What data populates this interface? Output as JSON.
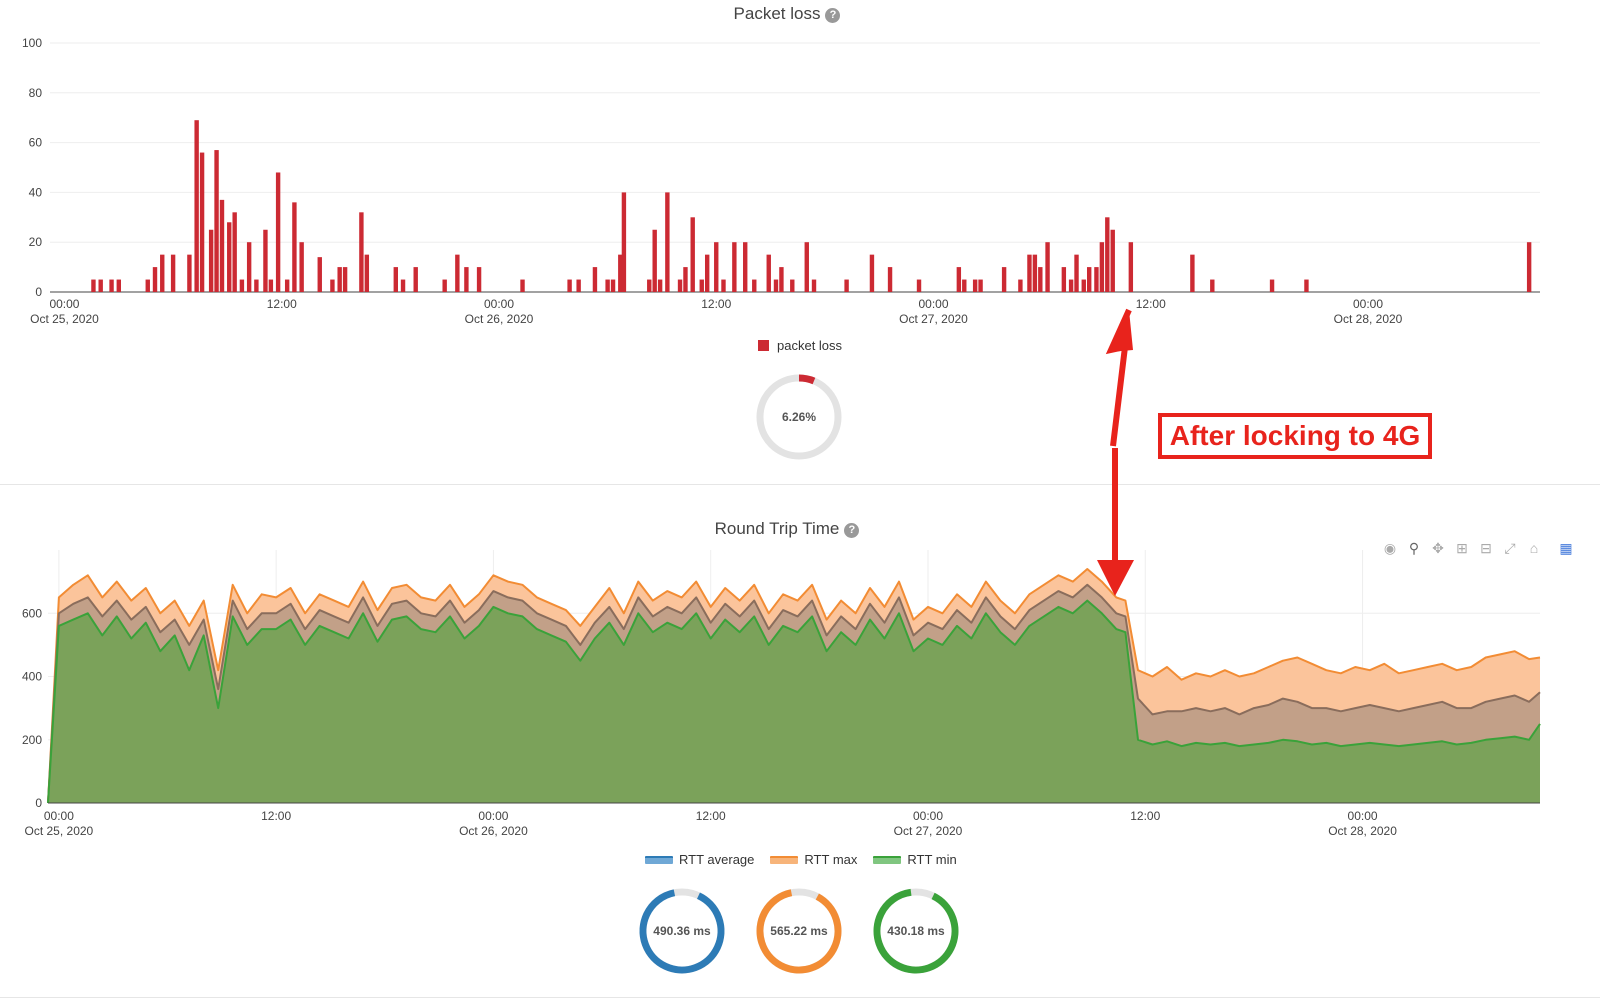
{
  "colors": {
    "loss": "#cc2a33",
    "avg": "#2d7bb6",
    "max": "#f28c34",
    "min": "#3aa23a",
    "grid": "#eeeeee",
    "annotation": "#e8231c"
  },
  "packet_loss": {
    "title": "Packet loss",
    "legend": "packet loss",
    "gauge": {
      "value": 6.26,
      "label": "6.26%"
    }
  },
  "rtt": {
    "title": "Round Trip Time",
    "legend": [
      "RTT average",
      "RTT max",
      "RTT min"
    ],
    "gauges": [
      {
        "label": "490.36 ms",
        "color": "avg"
      },
      {
        "label": "565.22 ms",
        "color": "max"
      },
      {
        "label": "430.18 ms",
        "color": "min"
      }
    ]
  },
  "toolbar_icons": [
    "camera-icon",
    "zoom-icon",
    "pan-icon",
    "zoom-in-icon",
    "zoom-out-icon",
    "autoscale-icon",
    "reset-icon",
    "plotly-logo-icon"
  ],
  "annotation": {
    "text": "After locking to 4G"
  },
  "chart_data": [
    {
      "type": "bar",
      "title": "Packet loss",
      "series": [
        {
          "name": "packet loss"
        }
      ],
      "ylim": [
        0,
        100
      ],
      "yticks": [
        0,
        20,
        40,
        60,
        80,
        100
      ],
      "xticks": [
        {
          "h": 0,
          "label": "00:00",
          "sub": "Oct 25, 2020"
        },
        {
          "h": 12,
          "label": "12:00",
          "sub": ""
        },
        {
          "h": 24,
          "label": "00:00",
          "sub": "Oct 26, 2020"
        },
        {
          "h": 36,
          "label": "12:00",
          "sub": ""
        },
        {
          "h": 48,
          "label": "00:00",
          "sub": "Oct 27, 2020"
        },
        {
          "h": 60,
          "label": "12:00",
          "sub": ""
        },
        {
          "h": 72,
          "label": "00:00",
          "sub": "Oct 28, 2020"
        }
      ],
      "xlim_hours": [
        -0.8,
        81.5
      ],
      "bars": [
        [
          1.6,
          5
        ],
        [
          2.0,
          5
        ],
        [
          2.6,
          5
        ],
        [
          3.0,
          5
        ],
        [
          4.6,
          5
        ],
        [
          5.0,
          10
        ],
        [
          5.4,
          15
        ],
        [
          6.0,
          15
        ],
        [
          6.9,
          15
        ],
        [
          7.3,
          69
        ],
        [
          7.6,
          56
        ],
        [
          8.1,
          25
        ],
        [
          8.4,
          57
        ],
        [
          8.7,
          37
        ],
        [
          9.1,
          28
        ],
        [
          9.4,
          32
        ],
        [
          9.8,
          5
        ],
        [
          10.2,
          20
        ],
        [
          10.6,
          5
        ],
        [
          11.1,
          25
        ],
        [
          11.4,
          5
        ],
        [
          11.8,
          48
        ],
        [
          12.3,
          5
        ],
        [
          12.7,
          36
        ],
        [
          13.1,
          20
        ],
        [
          14.1,
          14
        ],
        [
          14.8,
          5
        ],
        [
          15.2,
          10
        ],
        [
          15.5,
          10
        ],
        [
          16.4,
          32
        ],
        [
          16.7,
          15
        ],
        [
          18.3,
          10
        ],
        [
          18.7,
          5
        ],
        [
          19.4,
          10
        ],
        [
          21.0,
          5
        ],
        [
          21.7,
          15
        ],
        [
          22.2,
          10
        ],
        [
          22.9,
          10
        ],
        [
          25.3,
          5
        ],
        [
          27.9,
          5
        ],
        [
          28.4,
          5
        ],
        [
          29.3,
          10
        ],
        [
          30.0,
          5
        ],
        [
          30.3,
          5
        ],
        [
          30.7,
          15
        ],
        [
          30.9,
          40
        ],
        [
          32.3,
          5
        ],
        [
          32.6,
          25
        ],
        [
          32.9,
          5
        ],
        [
          33.3,
          40
        ],
        [
          34.0,
          5
        ],
        [
          34.3,
          10
        ],
        [
          34.7,
          30
        ],
        [
          35.2,
          5
        ],
        [
          35.5,
          15
        ],
        [
          36.0,
          20
        ],
        [
          36.4,
          5
        ],
        [
          37.0,
          20
        ],
        [
          37.6,
          20
        ],
        [
          38.1,
          5
        ],
        [
          38.9,
          15
        ],
        [
          39.3,
          5
        ],
        [
          39.6,
          10
        ],
        [
          40.2,
          5
        ],
        [
          41.0,
          20
        ],
        [
          41.4,
          5
        ],
        [
          43.2,
          5
        ],
        [
          44.6,
          15
        ],
        [
          45.6,
          10
        ],
        [
          47.2,
          5
        ],
        [
          49.4,
          10
        ],
        [
          49.7,
          5
        ],
        [
          50.3,
          5
        ],
        [
          50.6,
          5
        ],
        [
          51.9,
          10
        ],
        [
          52.8,
          5
        ],
        [
          53.3,
          15
        ],
        [
          53.6,
          15
        ],
        [
          53.9,
          10
        ],
        [
          54.3,
          20
        ],
        [
          55.2,
          10
        ],
        [
          55.6,
          5
        ],
        [
          55.9,
          15
        ],
        [
          56.3,
          5
        ],
        [
          56.6,
          10
        ],
        [
          57.0,
          10
        ],
        [
          57.3,
          20
        ],
        [
          57.6,
          30
        ],
        [
          57.9,
          25
        ],
        [
          58.9,
          20
        ],
        [
          62.3,
          15
        ],
        [
          63.4,
          5
        ],
        [
          66.7,
          5
        ],
        [
          68.6,
          5
        ],
        [
          80.9,
          20
        ]
      ]
    },
    {
      "type": "area",
      "title": "Round Trip Time",
      "series": [
        {
          "name": "RTT average"
        },
        {
          "name": "RTT max"
        },
        {
          "name": "RTT min"
        }
      ],
      "ylim": [
        0,
        800
      ],
      "yticks": [
        0,
        200,
        400,
        600
      ],
      "xticks": [
        {
          "h": 0,
          "label": "00:00",
          "sub": "Oct 25, 2020"
        },
        {
          "h": 12,
          "label": "12:00",
          "sub": ""
        },
        {
          "h": 24,
          "label": "00:00",
          "sub": "Oct 26, 2020"
        },
        {
          "h": 36,
          "label": "12:00",
          "sub": ""
        },
        {
          "h": 48,
          "label": "00:00",
          "sub": "Oct 27, 2020"
        },
        {
          "h": 60,
          "label": "12:00",
          "sub": ""
        },
        {
          "h": 72,
          "label": "00:00",
          "sub": "Oct 28, 2020"
        }
      ],
      "xlim_hours": [
        -0.6,
        81.8
      ],
      "x_hours": [
        -0.6,
        0.0,
        0.8,
        1.6,
        2.4,
        3.2,
        4.0,
        4.8,
        5.6,
        6.4,
        7.2,
        8.0,
        8.8,
        9.6,
        10.4,
        11.2,
        12.0,
        12.8,
        13.6,
        14.4,
        15.2,
        16.0,
        16.8,
        17.6,
        18.4,
        19.2,
        20.0,
        20.8,
        21.6,
        22.4,
        23.2,
        24.0,
        24.8,
        25.6,
        26.4,
        27.2,
        28.0,
        28.8,
        29.6,
        30.4,
        31.2,
        32.0,
        32.8,
        33.6,
        34.4,
        35.2,
        36.0,
        36.8,
        37.6,
        38.4,
        39.2,
        40.0,
        40.8,
        41.6,
        42.4,
        43.2,
        44.0,
        44.8,
        45.6,
        46.4,
        47.2,
        48.0,
        48.8,
        49.6,
        50.4,
        51.2,
        52.0,
        52.8,
        53.6,
        54.4,
        55.2,
        56.0,
        56.8,
        57.6,
        58.4,
        58.9,
        59.6,
        60.4,
        61.2,
        62.0,
        62.8,
        63.6,
        64.4,
        65.2,
        66.0,
        66.8,
        67.6,
        68.4,
        69.2,
        70.0,
        70.8,
        71.6,
        72.4,
        73.2,
        74.0,
        74.8,
        75.6,
        76.4,
        77.2,
        78.0,
        78.8,
        79.6,
        80.4,
        81.2,
        81.8
      ],
      "max": [
        0,
        650,
        690,
        720,
        650,
        700,
        640,
        680,
        600,
        640,
        560,
        640,
        420,
        690,
        600,
        660,
        650,
        680,
        600,
        660,
        640,
        620,
        700,
        610,
        680,
        690,
        650,
        640,
        690,
        620,
        660,
        720,
        700,
        690,
        650,
        630,
        610,
        560,
        620,
        680,
        600,
        700,
        640,
        670,
        650,
        700,
        620,
        680,
        640,
        690,
        600,
        660,
        640,
        690,
        580,
        640,
        600,
        680,
        620,
        700,
        580,
        620,
        600,
        660,
        620,
        700,
        640,
        600,
        660,
        690,
        720,
        700,
        740,
        700,
        650,
        640,
        420,
        400,
        430,
        390,
        410,
        400,
        420,
        400,
        410,
        430,
        450,
        460,
        440,
        420,
        410,
        430,
        420,
        440,
        410,
        420,
        430,
        440,
        420,
        430,
        460,
        470,
        480,
        455,
        460
      ],
      "avg": [
        0,
        600,
        630,
        650,
        590,
        640,
        580,
        620,
        540,
        580,
        500,
        580,
        360,
        640,
        550,
        600,
        600,
        630,
        550,
        610,
        590,
        570,
        650,
        560,
        630,
        640,
        600,
        590,
        640,
        570,
        610,
        670,
        650,
        640,
        600,
        580,
        560,
        500,
        570,
        620,
        550,
        650,
        590,
        620,
        600,
        650,
        570,
        630,
        590,
        640,
        550,
        610,
        590,
        640,
        530,
        590,
        550,
        630,
        570,
        650,
        530,
        570,
        550,
        610,
        570,
        650,
        590,
        550,
        610,
        640,
        670,
        650,
        690,
        650,
        600,
        590,
        330,
        280,
        290,
        290,
        300,
        290,
        300,
        280,
        300,
        310,
        330,
        320,
        300,
        300,
        290,
        300,
        310,
        300,
        290,
        300,
        310,
        320,
        300,
        300,
        320,
        330,
        340,
        320,
        350
      ],
      "min": [
        0,
        560,
        580,
        600,
        530,
        590,
        520,
        570,
        480,
        530,
        420,
        530,
        300,
        590,
        500,
        550,
        550,
        580,
        500,
        560,
        540,
        520,
        600,
        510,
        580,
        590,
        550,
        540,
        590,
        520,
        560,
        620,
        600,
        590,
        550,
        530,
        510,
        450,
        520,
        570,
        500,
        600,
        540,
        570,
        550,
        600,
        520,
        580,
        540,
        590,
        500,
        560,
        540,
        590,
        480,
        540,
        500,
        580,
        520,
        600,
        480,
        520,
        500,
        560,
        520,
        600,
        540,
        500,
        560,
        590,
        620,
        600,
        640,
        600,
        550,
        540,
        200,
        185,
        195,
        180,
        190,
        185,
        190,
        180,
        185,
        190,
        200,
        195,
        185,
        190,
        180,
        185,
        190,
        185,
        180,
        185,
        190,
        195,
        185,
        190,
        200,
        205,
        210,
        200,
        250
      ]
    }
  ]
}
